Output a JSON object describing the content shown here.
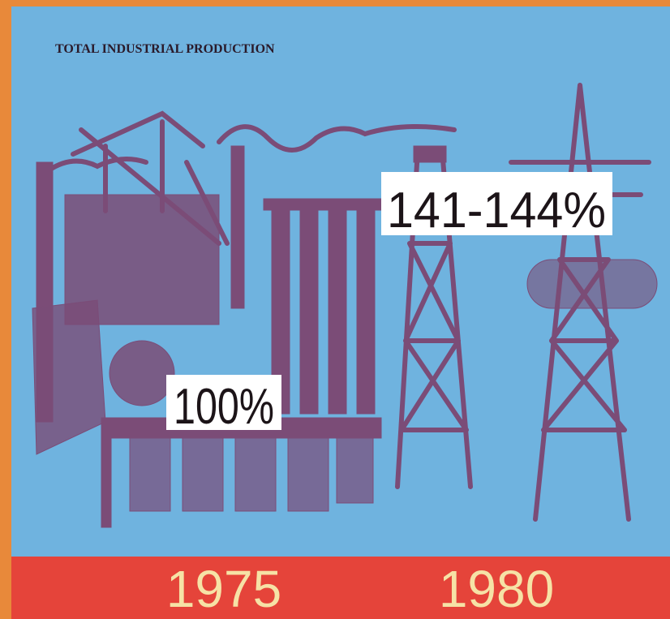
{
  "header": {
    "title": "TOTAL INDUSTRIAL PRODUCTION"
  },
  "labels": [
    {
      "year": "1975",
      "value": "100%"
    },
    {
      "year": "1980",
      "value": "141-144%"
    }
  ]
}
